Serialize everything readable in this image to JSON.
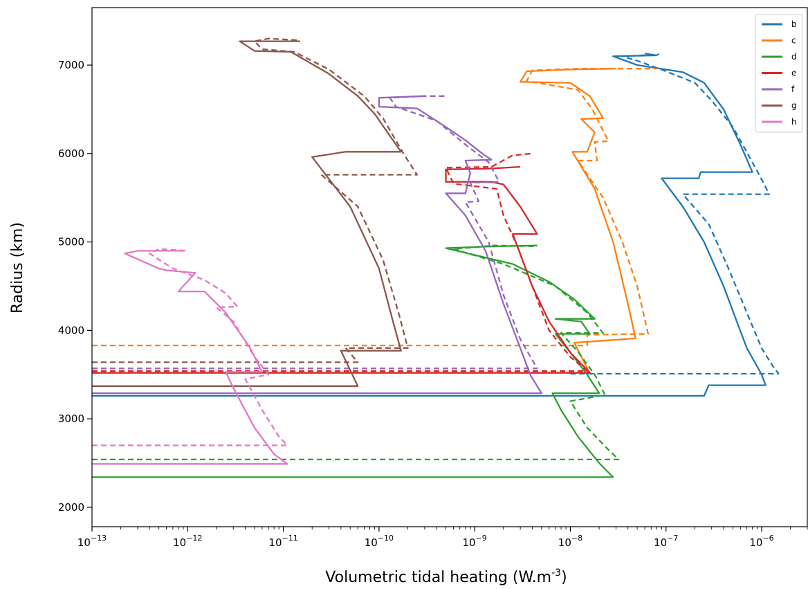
{
  "chart_data": {
    "type": "line",
    "title": "",
    "xlabel": "Volumetric tidal heating (W.m",
    "xlabel_sup": "-3",
    "xlabel_close": ")",
    "ylabel": "Radius (km)",
    "xscale": "log",
    "xlim": [
      1e-13,
      3e-06
    ],
    "ylim": [
      1780,
      7650
    ],
    "xticks": [
      {
        "value": 1e-13,
        "base": "10",
        "exp": "−13"
      },
      {
        "value": 1e-12,
        "base": "10",
        "exp": "−12"
      },
      {
        "value": 1e-11,
        "base": "10",
        "exp": "−11"
      },
      {
        "value": 1e-10,
        "base": "10",
        "exp": "−10"
      },
      {
        "value": 1e-09,
        "base": "10",
        "exp": "−9"
      },
      {
        "value": 1e-08,
        "base": "10",
        "exp": "−8"
      },
      {
        "value": 1e-07,
        "base": "10",
        "exp": "−7"
      },
      {
        "value": 1e-06,
        "base": "10",
        "exp": "−6"
      }
    ],
    "yticks": [
      "2000",
      "3000",
      "4000",
      "5000",
      "6000",
      "7000"
    ],
    "ytick_values": [
      2000,
      3000,
      4000,
      5000,
      6000,
      7000
    ],
    "grid": false,
    "legend_position": "top-right",
    "series": [
      {
        "name": "b",
        "color": "#1f77b4",
        "solid": [
          [
            1e-13,
            3260
          ],
          [
            2.5e-07,
            3260
          ],
          [
            2.8e-07,
            3380
          ],
          [
            1.1e-06,
            3380
          ],
          [
            1e-06,
            3500
          ],
          [
            7e-07,
            3800
          ],
          [
            5.5e-07,
            4100
          ],
          [
            4e-07,
            4500
          ],
          [
            2.5e-07,
            5000
          ],
          [
            1.5e-07,
            5400
          ],
          [
            9e-08,
            5720
          ],
          [
            2.2e-07,
            5720
          ],
          [
            2.3e-07,
            5790
          ],
          [
            8e-07,
            5790
          ],
          [
            6e-07,
            6100
          ],
          [
            4e-07,
            6500
          ],
          [
            2.5e-07,
            6800
          ],
          [
            1.5e-07,
            6920
          ],
          [
            5e-08,
            7000
          ],
          [
            2.8e-08,
            7100
          ],
          [
            8e-08,
            7110
          ],
          [
            6e-08,
            7130
          ]
        ],
        "dashed": [
          [
            1e-08,
            3510
          ],
          [
            1.5e-06,
            3510
          ],
          [
            1.3e-06,
            3600
          ],
          [
            1e-06,
            3800
          ],
          [
            7e-07,
            4200
          ],
          [
            4.5e-07,
            4700
          ],
          [
            2.8e-07,
            5200
          ],
          [
            1.5e-07,
            5540
          ],
          [
            1.2e-06,
            5540
          ],
          [
            9e-07,
            5800
          ],
          [
            5e-07,
            6300
          ],
          [
            3e-07,
            6600
          ],
          [
            2e-07,
            6800
          ],
          [
            1e-07,
            6930
          ],
          [
            5e-08,
            7050
          ],
          [
            3.5e-08,
            7100
          ],
          [
            8.5e-08,
            7120
          ]
        ]
      },
      {
        "name": "c",
        "color": "#ff7f0e",
        "solid": [
          [
            1.6e-08,
            3510
          ],
          [
            1.1e-08,
            3860
          ],
          [
            4.8e-08,
            3910
          ],
          [
            4e-08,
            4300
          ],
          [
            2.8e-08,
            5000
          ],
          [
            1.8e-08,
            5600
          ],
          [
            1.05e-08,
            6020
          ],
          [
            1.5e-08,
            6020
          ],
          [
            1.8e-08,
            6240
          ],
          [
            1.3e-08,
            6390
          ],
          [
            2.2e-08,
            6400
          ],
          [
            1.6e-08,
            6650
          ],
          [
            1e-08,
            6800
          ],
          [
            3e-09,
            6810
          ],
          [
            3.5e-09,
            6930
          ],
          [
            1e-08,
            6950
          ],
          [
            3e-08,
            6960
          ]
        ],
        "dashed": [
          [
            1e-13,
            3830
          ],
          [
            1.5e-08,
            3830
          ],
          [
            1.5e-08,
            3950
          ],
          [
            6.5e-08,
            3960
          ],
          [
            5e-08,
            4500
          ],
          [
            3.5e-08,
            5000
          ],
          [
            2.2e-08,
            5500
          ],
          [
            1.2e-08,
            5920
          ],
          [
            1.9e-08,
            5920
          ],
          [
            1.8e-08,
            6130
          ],
          [
            2.5e-08,
            6140
          ],
          [
            1.7e-08,
            6500
          ],
          [
            1.2e-08,
            6720
          ],
          [
            3.5e-09,
            6820
          ],
          [
            4e-09,
            6940
          ],
          [
            1.2e-08,
            6960
          ],
          [
            8e-08,
            6960
          ]
        ]
      },
      {
        "name": "d",
        "color": "#2ca02c",
        "solid": [
          [
            1e-13,
            2340
          ],
          [
            2.8e-08,
            2340
          ],
          [
            2e-08,
            2500
          ],
          [
            1.2e-08,
            2800
          ],
          [
            8e-09,
            3100
          ],
          [
            6.5e-09,
            3290
          ],
          [
            2e-08,
            3290
          ],
          [
            1.5e-08,
            3500
          ],
          [
            1e-08,
            3750
          ],
          [
            7e-09,
            3960
          ],
          [
            1.6e-08,
            3960
          ],
          [
            1.3e-08,
            4100
          ],
          [
            7e-09,
            4130
          ],
          [
            1.8e-08,
            4130
          ],
          [
            1.1e-08,
            4350
          ],
          [
            6e-09,
            4550
          ],
          [
            2.5e-09,
            4750
          ],
          [
            5e-10,
            4930
          ],
          [
            1.5e-09,
            4950
          ],
          [
            4.5e-09,
            4960
          ]
        ],
        "dashed": [
          [
            1e-13,
            2540
          ],
          [
            3.2e-08,
            2540
          ],
          [
            2.5e-08,
            2650
          ],
          [
            1.5e-08,
            2900
          ],
          [
            1e-08,
            3200
          ],
          [
            2.3e-08,
            3270
          ],
          [
            1.8e-08,
            3500
          ],
          [
            1.2e-08,
            3760
          ],
          [
            8e-09,
            3970
          ],
          [
            2.2e-08,
            3970
          ],
          [
            1.5e-08,
            4200
          ],
          [
            7e-09,
            4500
          ],
          [
            2e-09,
            4750
          ],
          [
            6e-10,
            4920
          ],
          [
            1.6e-09,
            4960
          ],
          [
            4.5e-09,
            4950
          ]
        ]
      },
      {
        "name": "e",
        "color": "#d62728",
        "solid": [
          [
            1e-13,
            3520
          ],
          [
            1.6e-08,
            3520
          ],
          [
            1e-08,
            3750
          ],
          [
            6e-09,
            4100
          ],
          [
            4e-09,
            4500
          ],
          [
            2.5e-09,
            5090
          ],
          [
            4.5e-09,
            5090
          ],
          [
            3e-09,
            5400
          ],
          [
            2e-09,
            5650
          ],
          [
            1.5e-09,
            5680
          ],
          [
            5e-10,
            5680
          ],
          [
            5e-10,
            5820
          ],
          [
            1.5e-09,
            5830
          ],
          [
            3e-09,
            5850
          ]
        ],
        "dashed": [
          [
            1e-13,
            3540
          ],
          [
            1.5e-08,
            3540
          ],
          [
            1e-08,
            3700
          ],
          [
            6e-09,
            4000
          ],
          [
            4e-09,
            4500
          ],
          [
            2.8e-09,
            4950
          ],
          [
            2e-09,
            5300
          ],
          [
            1.7e-09,
            5600
          ],
          [
            6e-10,
            5660
          ],
          [
            5e-10,
            5840
          ],
          [
            1.5e-09,
            5850
          ],
          [
            2.5e-09,
            5980
          ],
          [
            4e-09,
            6000
          ]
        ]
      },
      {
        "name": "f",
        "color": "#9467bd",
        "solid": [
          [
            1e-13,
            3290
          ],
          [
            5e-09,
            3290
          ],
          [
            3.8e-09,
            3500
          ],
          [
            3e-09,
            3800
          ],
          [
            2e-09,
            4300
          ],
          [
            1.3e-09,
            4900
          ],
          [
            8e-10,
            5300
          ],
          [
            5e-10,
            5550
          ],
          [
            8e-10,
            5550
          ],
          [
            9e-10,
            5780
          ],
          [
            8e-10,
            5920
          ],
          [
            1.5e-09,
            5930
          ],
          [
            1.2e-09,
            6000
          ],
          [
            8e-10,
            6150
          ],
          [
            5e-10,
            6300
          ],
          [
            2.5e-10,
            6510
          ],
          [
            1e-10,
            6530
          ],
          [
            1e-10,
            6630
          ],
          [
            3e-10,
            6650
          ]
        ],
        "dashed": [
          [
            1e-13,
            3570
          ],
          [
            4.5e-09,
            3570
          ],
          [
            3e-09,
            3900
          ],
          [
            2e-09,
            4400
          ],
          [
            1.4e-09,
            5000
          ],
          [
            8e-10,
            5450
          ],
          [
            1.1e-09,
            5460
          ],
          [
            9e-10,
            5670
          ],
          [
            1.8e-09,
            5680
          ],
          [
            1.4e-09,
            5900
          ],
          [
            8e-10,
            6100
          ],
          [
            4e-10,
            6370
          ],
          [
            1.5e-10,
            6530
          ],
          [
            1.3e-10,
            6630
          ],
          [
            3e-10,
            6650
          ],
          [
            5e-10,
            6650
          ]
        ]
      },
      {
        "name": "g",
        "color": "#8c564b",
        "solid": [
          [
            1e-13,
            3370
          ],
          [
            6e-11,
            3370
          ],
          [
            4e-11,
            3770
          ],
          [
            1.7e-10,
            3770
          ],
          [
            1.4e-10,
            4100
          ],
          [
            1e-10,
            4700
          ],
          [
            5e-11,
            5400
          ],
          [
            2e-11,
            5960
          ],
          [
            4.5e-11,
            6020
          ],
          [
            1.7e-10,
            6020
          ],
          [
            1.3e-10,
            6200
          ],
          [
            9e-11,
            6450
          ],
          [
            6e-11,
            6650
          ],
          [
            3e-11,
            6900
          ],
          [
            1.2e-11,
            7150
          ],
          [
            5e-12,
            7160
          ],
          [
            3.5e-12,
            7270
          ],
          [
            1.5e-11,
            7270
          ]
        ],
        "dashed": [
          [
            1e-13,
            3640
          ],
          [
            6e-11,
            3640
          ],
          [
            4.5e-11,
            3800
          ],
          [
            2e-10,
            3800
          ],
          [
            1.6e-10,
            4200
          ],
          [
            1.1e-10,
            4800
          ],
          [
            6e-11,
            5400
          ],
          [
            2.5e-11,
            5760
          ],
          [
            2.5e-10,
            5760
          ],
          [
            1.8e-10,
            6000
          ],
          [
            1.1e-10,
            6400
          ],
          [
            7e-11,
            6650
          ],
          [
            3e-11,
            6950
          ],
          [
            1.3e-11,
            7150
          ],
          [
            6e-12,
            7180
          ],
          [
            5e-12,
            7270
          ],
          [
            7e-12,
            7300
          ],
          [
            1.5e-11,
            7280
          ]
        ]
      },
      {
        "name": "h",
        "color": "#e377c2",
        "solid": [
          [
            1e-13,
            2490
          ],
          [
            1.1e-11,
            2490
          ],
          [
            8e-12,
            2600
          ],
          [
            5e-12,
            2900
          ],
          [
            3e-12,
            3350
          ],
          [
            2.5e-12,
            3530
          ],
          [
            6e-12,
            3530
          ],
          [
            4.5e-12,
            3800
          ],
          [
            2.5e-12,
            4200
          ],
          [
            1.5e-12,
            4440
          ],
          [
            8e-13,
            4440
          ],
          [
            1.2e-12,
            4650
          ],
          [
            6e-13,
            4680
          ],
          [
            5e-13,
            4700
          ],
          [
            2.2e-13,
            4870
          ],
          [
            3e-13,
            4900
          ],
          [
            9e-13,
            4900
          ]
        ],
        "dashed": [
          [
            1e-13,
            2700
          ],
          [
            1.1e-11,
            2700
          ],
          [
            9e-12,
            2800
          ],
          [
            6e-12,
            3100
          ],
          [
            4e-12,
            3450
          ],
          [
            7e-12,
            3500
          ],
          [
            5e-12,
            3700
          ],
          [
            3e-12,
            4100
          ],
          [
            2e-12,
            4260
          ],
          [
            3.3e-12,
            4270
          ],
          [
            2.5e-12,
            4420
          ],
          [
            1.5e-12,
            4570
          ],
          [
            7e-13,
            4700
          ],
          [
            5e-13,
            4800
          ],
          [
            4e-13,
            4870
          ],
          [
            5e-13,
            4920
          ],
          [
            1e-12,
            4900
          ]
        ]
      }
    ]
  }
}
